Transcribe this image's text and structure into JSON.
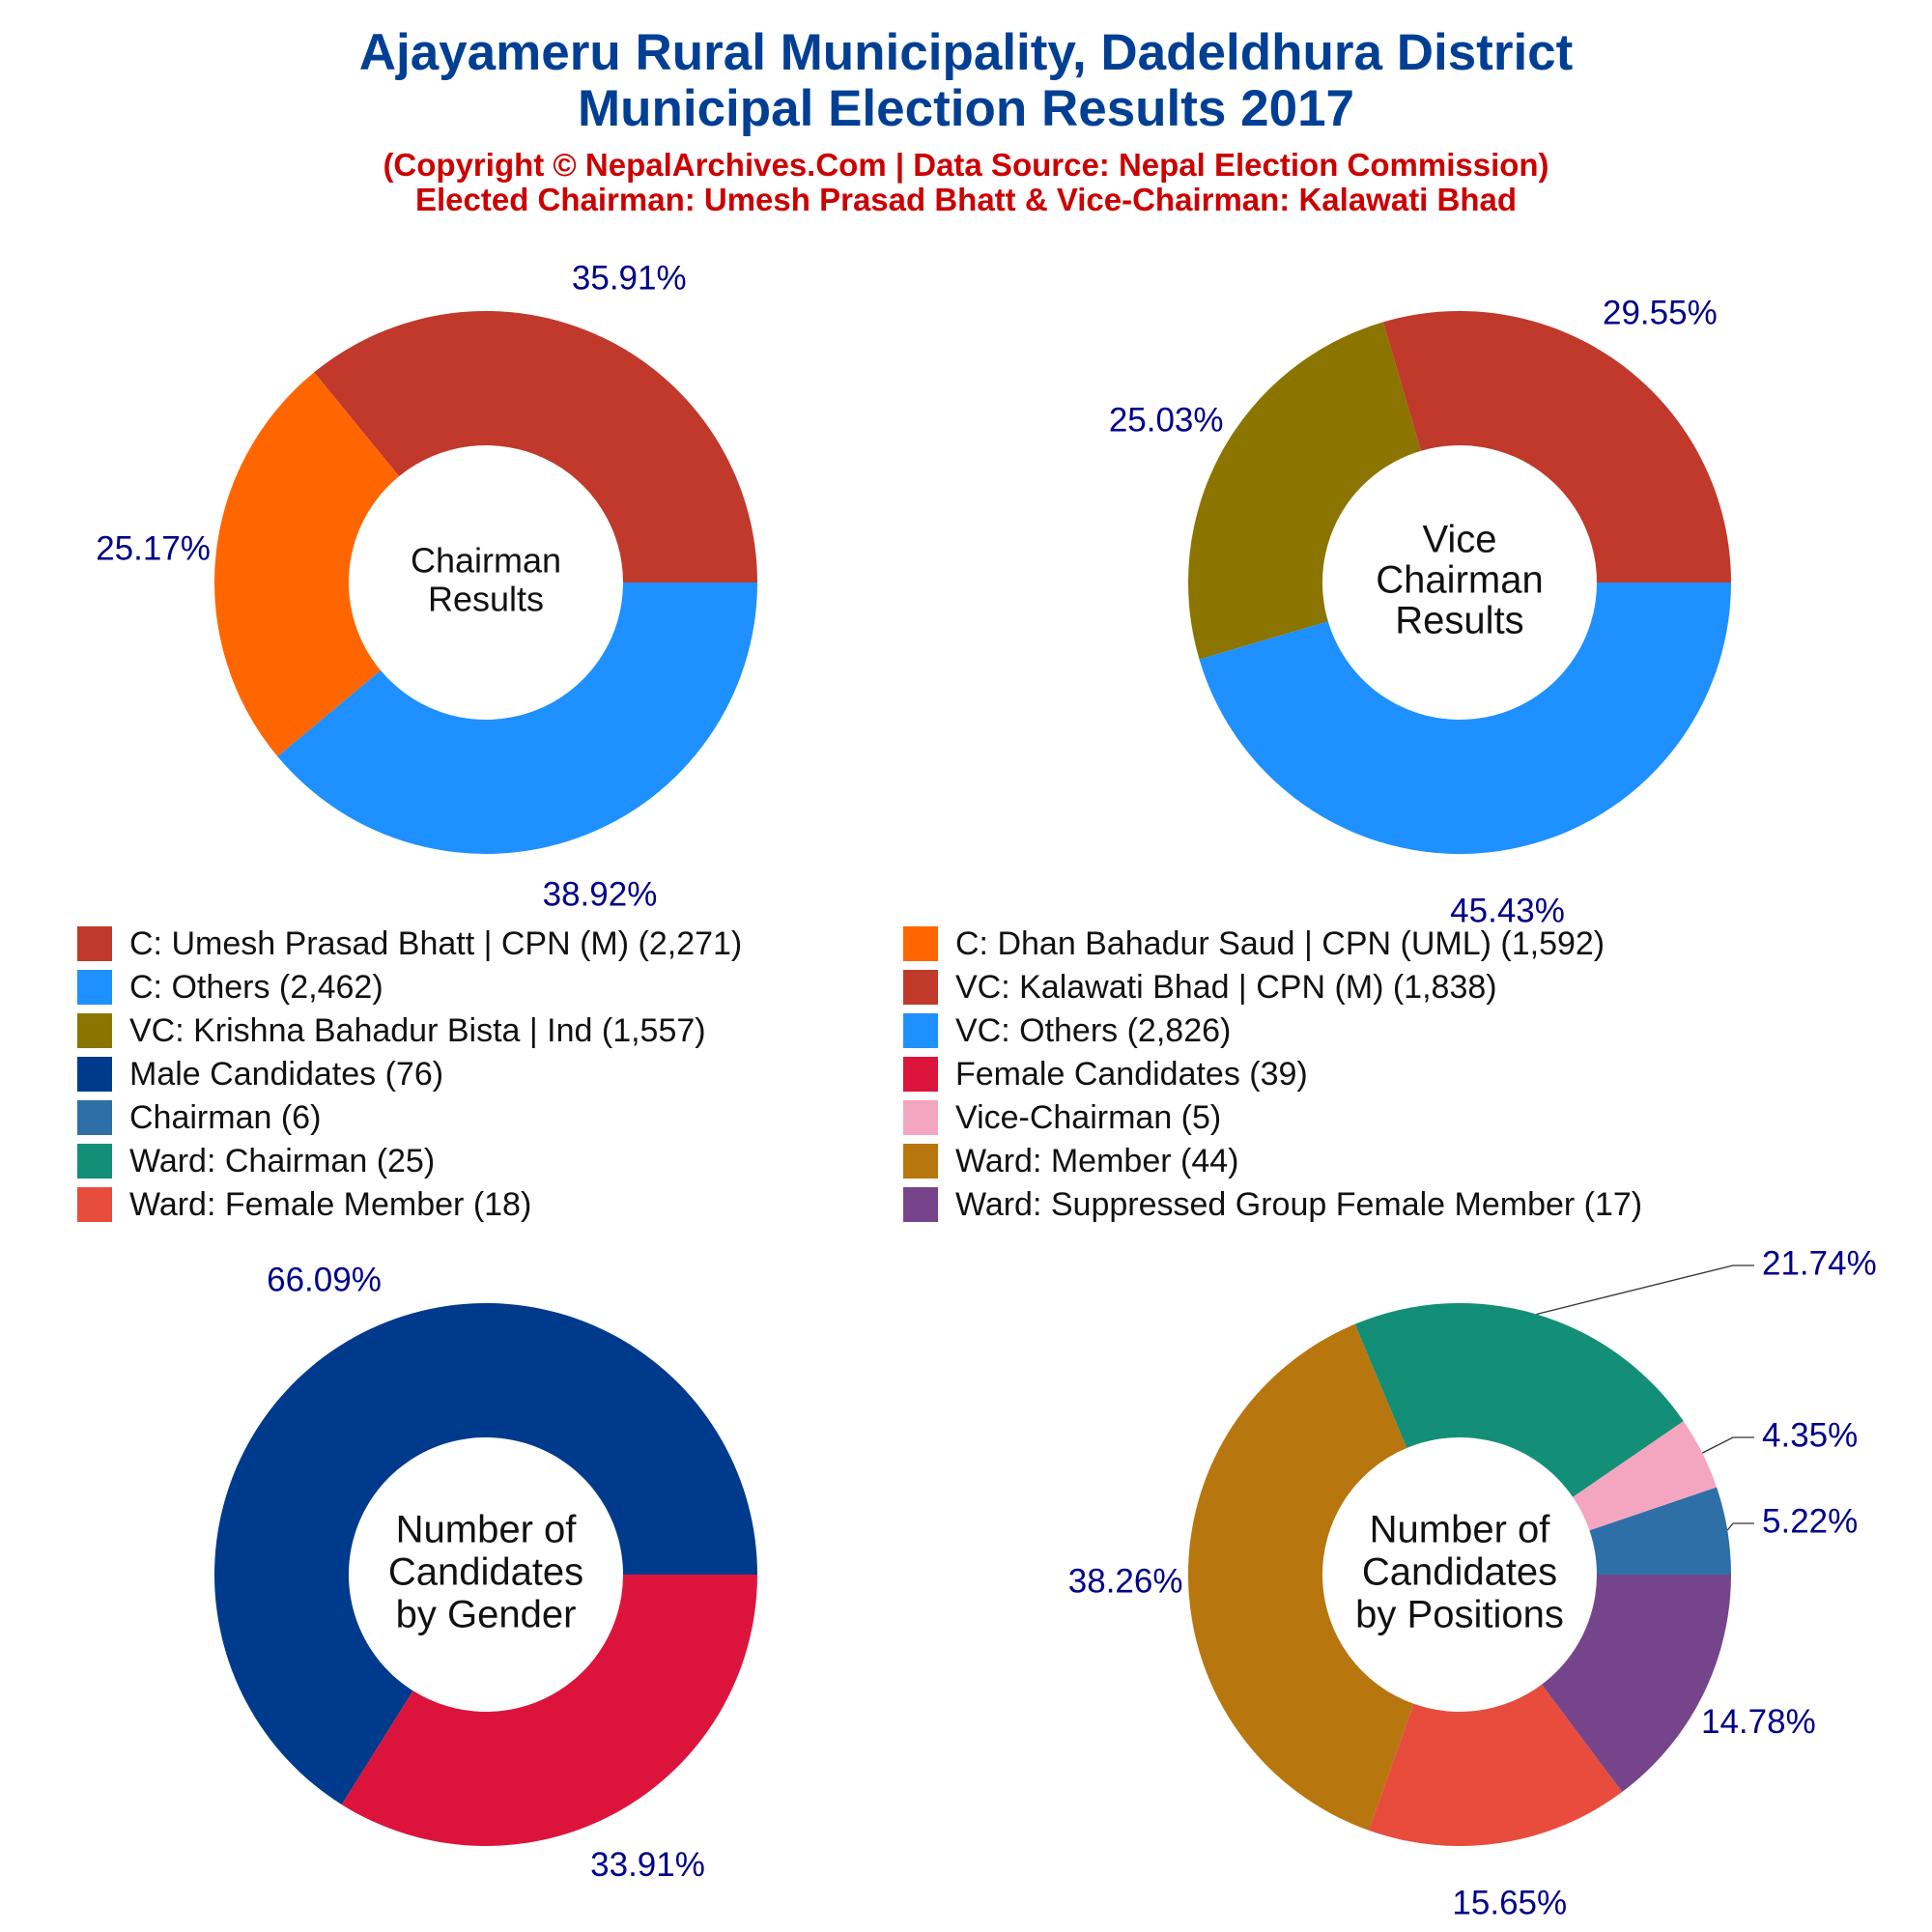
{
  "header": {
    "title_line1": "Ajayameru Rural Municipality, Dadeldhura District",
    "title_line2": "Municipal Election Results 2017",
    "subtitle_line1": "(Copyright © NepalArchives.Com | Data Source: Nepal Election Commission)",
    "subtitle_line2": "Elected Chairman: Umesh Prasad Bhatt & Vice-Chairman: Kalawati Bhad"
  },
  "legend": [
    {
      "label": "C: Umesh Prasad Bhatt | CPN (M) (2,271)",
      "color": "#c0392b"
    },
    {
      "label": "C: Dhan Bahadur Saud | CPN (UML) (1,592)",
      "color": "#ff6600"
    },
    {
      "label": "C: Others (2,462)",
      "color": "#1e90ff"
    },
    {
      "label": "VC: Kalawati Bhad | CPN (M) (1,838)",
      "color": "#c0392b"
    },
    {
      "label": "VC: Krishna Bahadur Bista | Ind (1,557)",
      "color": "#8b7500"
    },
    {
      "label": "VC: Others (2,826)",
      "color": "#1e90ff"
    },
    {
      "label": "Male Candidates (76)",
      "color": "#003a8c"
    },
    {
      "label": "Female Candidates (39)",
      "color": "#dc143c"
    },
    {
      "label": "Chairman (6)",
      "color": "#2e6fa7"
    },
    {
      "label": "Vice-Chairman (5)",
      "color": "#f4a6c0"
    },
    {
      "label": "Ward: Chairman (25)",
      "color": "#148f77"
    },
    {
      "label": "Ward: Member (44)",
      "color": "#b8760e"
    },
    {
      "label": "Ward: Female Member (18)",
      "color": "#e74c3c"
    },
    {
      "label": "Ward: Suppressed Group Female Member (17)",
      "color": "#76448a"
    }
  ],
  "chart_data": [
    {
      "type": "pie",
      "title": "Chairman Results",
      "center_label": [
        "Chairman",
        "Results"
      ],
      "slices": [
        {
          "name": "C: Umesh Prasad Bhatt | CPN (M)",
          "value": 2271,
          "percent_label": "35.91%",
          "color": "#c0392b"
        },
        {
          "name": "C: Dhan Bahadur Saud | CPN (UML)",
          "value": 1592,
          "percent_label": "25.17%",
          "color": "#ff6600"
        },
        {
          "name": "C: Others",
          "value": 2462,
          "percent_label": "38.92%",
          "color": "#1e90ff"
        }
      ]
    },
    {
      "type": "pie",
      "title": "Vice Chairman Results",
      "center_label": [
        "Vice",
        "Chairman",
        "Results"
      ],
      "slices": [
        {
          "name": "VC: Kalawati Bhad | CPN (M)",
          "value": 1838,
          "percent_label": "29.55%",
          "color": "#c0392b"
        },
        {
          "name": "VC: Krishna Bahadur Bista | Ind",
          "value": 1557,
          "percent_label": "25.03%",
          "color": "#8b7500"
        },
        {
          "name": "VC: Others",
          "value": 2826,
          "percent_label": "45.43%",
          "color": "#1e90ff"
        }
      ]
    },
    {
      "type": "pie",
      "title": "Number of Candidates by Gender",
      "center_label": [
        "Number of",
        "Candidates",
        "by Gender"
      ],
      "slices": [
        {
          "name": "Male Candidates",
          "value": 76,
          "percent_label": "66.09%",
          "color": "#003a8c"
        },
        {
          "name": "Female Candidates",
          "value": 39,
          "percent_label": "33.91%",
          "color": "#dc143c"
        }
      ]
    },
    {
      "type": "pie",
      "title": "Number of Candidates by Positions",
      "center_label": [
        "Number of",
        "Candidates",
        "by Positions"
      ],
      "slices": [
        {
          "name": "Chairman",
          "value": 6,
          "percent_label": "5.22%",
          "color": "#2e6fa7"
        },
        {
          "name": "Vice-Chairman",
          "value": 5,
          "percent_label": "4.35%",
          "color": "#f4a6c0"
        },
        {
          "name": "Ward: Chairman",
          "value": 25,
          "percent_label": "21.74%",
          "color": "#148f77"
        },
        {
          "name": "Ward: Member",
          "value": 44,
          "percent_label": "38.26%",
          "color": "#b8760e"
        },
        {
          "name": "Ward: Female Member",
          "value": 18,
          "percent_label": "15.65%",
          "color": "#e74c3c"
        },
        {
          "name": "Ward: Suppressed Group Female Member",
          "value": 17,
          "percent_label": "14.78%",
          "color": "#76448a"
        }
      ]
    }
  ]
}
